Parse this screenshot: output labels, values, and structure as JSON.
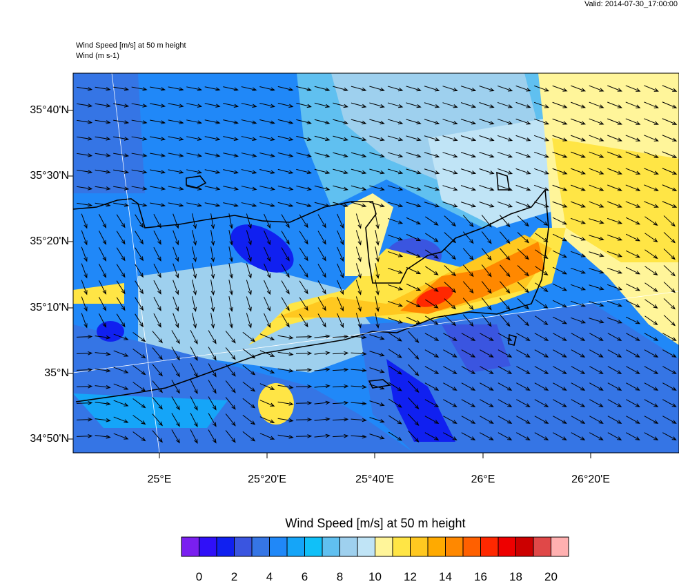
{
  "valid_time": "Valid: 2014-07-30_17:00:00",
  "plot_title": "Wind Speed [m/s] at 50 m height",
  "vector_title": "Wind   (m s-1)",
  "lat_labels": [
    "35°40'N",
    "35°30'N",
    "35°20'N",
    "35°10'N",
    "35°N",
    "34°50'N"
  ],
  "lon_labels": [
    "25°E",
    "25°20'E",
    "25°40'E",
    "26°E",
    "26°20'E"
  ],
  "colorbar": {
    "title": "Wind Speed [m/s] at 50 m height",
    "labels": [
      "0",
      "2",
      "4",
      "6",
      "8",
      "10",
      "12",
      "14",
      "16",
      "18",
      "20"
    ],
    "colors": [
      "#7a1ff0",
      "#3010f8",
      "#1020f0",
      "#3a55e0",
      "#3575e5",
      "#2088f8",
      "#15a5f8",
      "#10c0f8",
      "#60c0f0",
      "#9ed0ee",
      "#c0e4f6",
      "#fff59a",
      "#ffe545",
      "#ffc820",
      "#ffaa00",
      "#ff8800",
      "#ff6000",
      "#ff2800",
      "#ee0000",
      "#cc0000",
      "#e04848",
      "#ffb0b0"
    ]
  }
}
